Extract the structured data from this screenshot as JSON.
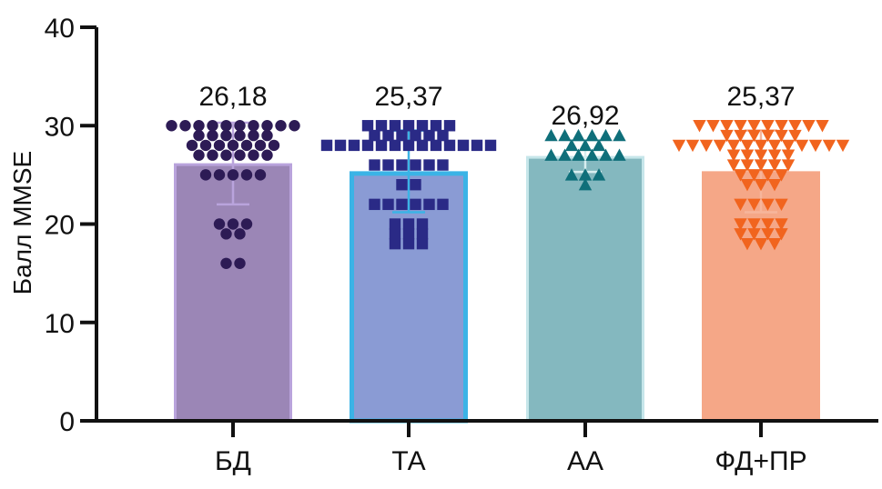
{
  "chart_data": {
    "type": "bar",
    "title": "",
    "xlabel": "",
    "ylabel": "Балл MMSE",
    "ylim": [
      0,
      40
    ],
    "yticks": [
      0,
      10,
      20,
      30,
      40
    ],
    "categories": [
      "БД",
      "ТА",
      "АА",
      "ФД+ПР"
    ],
    "values": [
      26.18,
      25.37,
      26.92,
      25.37
    ],
    "value_labels": [
      "26,18",
      "25,37",
      "26,92",
      "25,37"
    ],
    "error": {
      "upper": [
        30.3,
        29.5,
        28.5,
        29.5
      ],
      "lower": [
        22.0,
        21.2,
        25.3,
        21.2
      ]
    },
    "bar_fill_colors": [
      "#9b86b6",
      "#8a9bd4",
      "#84b8bf",
      "#f5a787"
    ],
    "bar_edge_colors": [
      "#b9a3dc",
      "#3bb3e6",
      "#c6e6ea",
      "#f5a787"
    ],
    "marker_colors": [
      "#2d1b55",
      "#2a2a86",
      "#0f6f7a",
      "#f1641e"
    ],
    "marker_shapes": [
      "circle",
      "square",
      "triangle-up",
      "triangle-down"
    ],
    "points": [
      [
        30,
        30,
        30,
        30,
        30,
        30,
        30,
        30,
        30,
        30,
        29,
        29,
        29,
        29,
        29,
        29,
        28,
        28,
        28,
        28,
        28,
        28,
        28,
        27,
        27,
        27,
        27,
        27,
        27,
        25,
        25,
        25,
        25,
        25,
        20,
        20,
        20,
        19,
        19,
        16,
        16
      ],
      [
        30,
        30,
        30,
        30,
        30,
        30,
        30,
        29,
        29,
        29,
        29,
        29,
        29,
        28,
        28,
        28,
        28,
        28,
        28,
        28,
        28,
        28,
        28,
        28,
        28,
        28,
        26,
        26,
        26,
        26,
        26,
        26,
        24,
        24,
        22,
        22,
        22,
        22,
        22,
        22,
        20,
        20,
        20,
        19,
        19,
        19,
        18,
        18,
        18
      ],
      [
        29,
        29,
        29,
        29,
        29,
        29,
        28,
        28,
        28,
        27,
        27,
        27,
        27,
        27,
        27,
        25,
        25,
        25,
        24
      ],
      [
        30,
        30,
        30,
        30,
        30,
        30,
        30,
        30,
        30,
        30,
        29,
        29,
        29,
        29,
        29,
        29,
        28,
        28,
        28,
        28,
        28,
        28,
        28,
        28,
        28,
        28,
        28,
        28,
        28,
        27,
        27,
        27,
        27,
        27,
        26,
        26,
        26,
        26,
        26,
        25,
        25,
        25,
        25,
        24,
        24,
        24,
        22,
        22,
        22,
        22,
        20,
        20,
        20,
        20,
        19,
        19,
        19,
        19,
        18,
        18,
        18
      ]
    ]
  }
}
